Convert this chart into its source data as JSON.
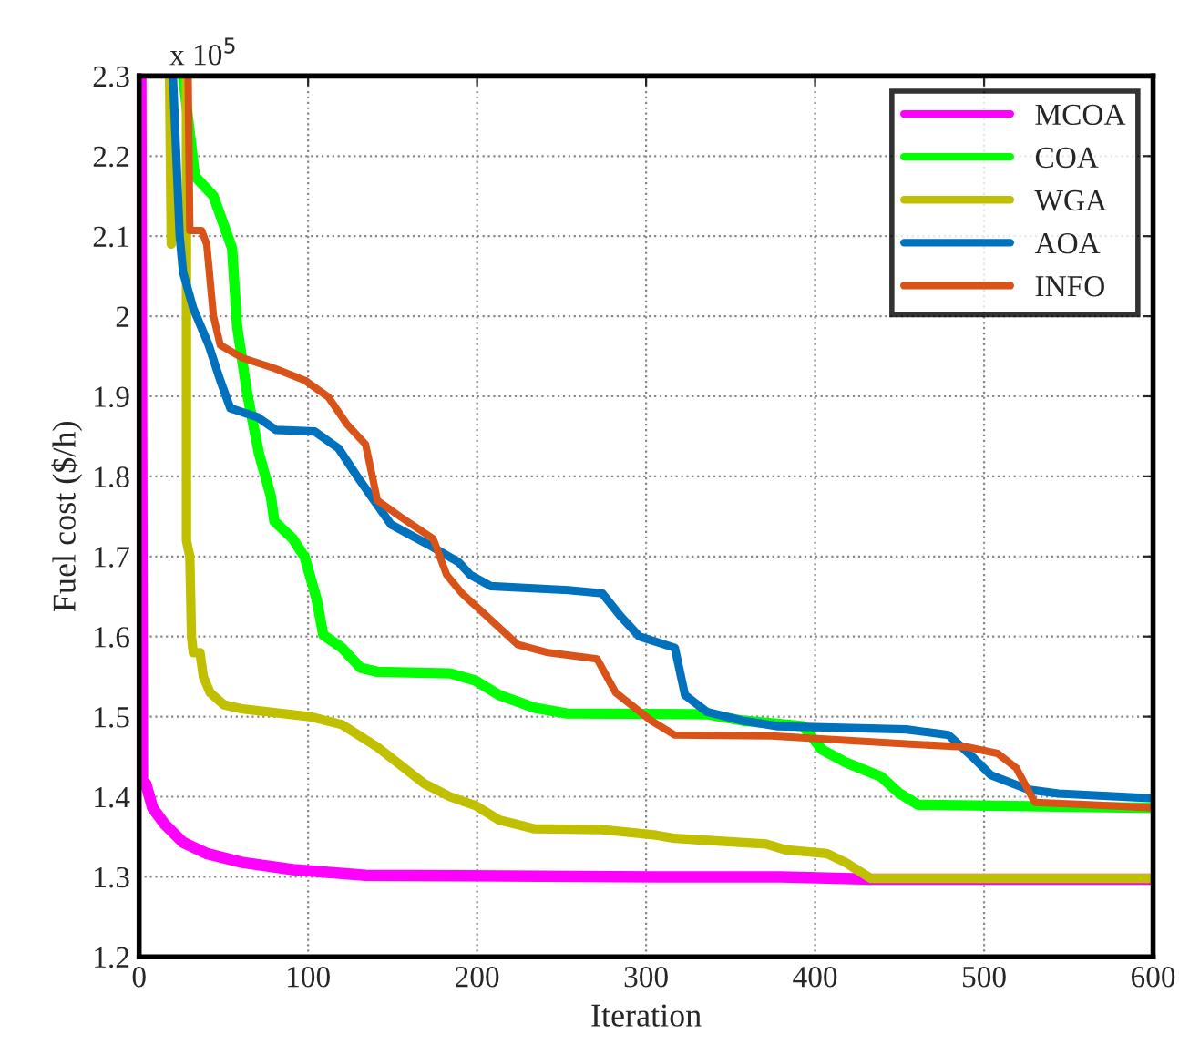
{
  "chart_data": {
    "type": "line",
    "xlabel": "Iteration",
    "ylabel": "Fuel cost ($/h)",
    "annotations": [
      "x 10$^{5}$"
    ],
    "xlim": [
      0,
      600
    ],
    "xticks": [
      0,
      100,
      200,
      300,
      400,
      500,
      600
    ],
    "ylim": [
      1.2,
      2.3
    ],
    "yticks": [
      1.2,
      1.3,
      1.4,
      1.5,
      1.6,
      1.7,
      1.8,
      1.9,
      2,
      2.1,
      2.2,
      2.3
    ],
    "grid": true,
    "legend": "top right",
    "line_style": "solid",
    "marker": "none",
    "series": [
      {
        "name": "MCOA",
        "color": "#ff00ff",
        "x": [
          1,
          2,
          4,
          8,
          15,
          26,
          40,
          61,
          91,
          134,
          306,
          380,
          433,
          600
        ],
        "values": [
          2.3,
          1.42,
          1.416,
          1.386,
          1.366,
          1.343,
          1.329,
          1.318,
          1.309,
          1.302,
          1.3,
          1.3,
          1.297,
          1.297
        ]
      },
      {
        "name": "COA",
        "color": "#00ff00",
        "x": [
          26,
          33,
          44,
          55,
          58,
          64,
          71,
          78,
          80,
          91,
          98,
          105,
          109,
          120,
          131,
          141,
          184,
          199,
          213,
          234,
          253,
          336,
          357,
          393,
          404,
          418,
          439,
          450,
          461,
          600
        ],
        "values": [
          2.3,
          2.175,
          2.15,
          2.085,
          1.987,
          1.903,
          1.828,
          1.775,
          1.744,
          1.722,
          1.699,
          1.647,
          1.602,
          1.586,
          1.561,
          1.556,
          1.554,
          1.545,
          1.527,
          1.511,
          1.504,
          1.503,
          1.495,
          1.488,
          1.459,
          1.443,
          1.425,
          1.404,
          1.39,
          1.386
        ]
      },
      {
        "name": "WGA",
        "color": "#c0c000",
        "x": [
          18,
          19,
          23,
          28,
          28,
          30,
          31,
          32,
          36,
          38,
          42,
          50,
          60,
          101,
          120,
          141,
          169,
          184,
          199,
          213,
          234,
          274,
          306,
          317,
          371,
          382,
          407,
          418,
          433,
          600
        ],
        "values": [
          2.3,
          2.09,
          null,
          2.3,
          1.72,
          1.7,
          1.6,
          1.58,
          1.58,
          1.55,
          1.53,
          1.515,
          1.51,
          1.5,
          1.49,
          1.462,
          1.416,
          1.4,
          1.389,
          1.371,
          1.36,
          1.359,
          1.352,
          1.348,
          1.341,
          1.334,
          1.329,
          1.318,
          1.298,
          1.298
        ]
      },
      {
        "name": "AOA",
        "color": "#0072bd",
        "x": [
          20,
          24,
          26,
          32,
          41,
          48,
          54,
          70,
          81,
          104,
          118,
          129,
          140,
          149,
          171,
          189,
          196,
          208,
          254,
          274,
          285,
          296,
          317,
          323,
          336,
          357,
          378,
          454,
          479,
          493,
          504,
          526,
          544,
          600
        ],
        "values": [
          2.3,
          2.1,
          2.055,
          2.01,
          1.965,
          1.92,
          1.885,
          1.874,
          1.858,
          1.856,
          1.835,
          1.8,
          1.767,
          1.74,
          1.715,
          1.693,
          1.677,
          1.663,
          1.658,
          1.654,
          1.625,
          1.6,
          1.586,
          1.527,
          1.506,
          1.495,
          1.488,
          1.484,
          1.477,
          1.45,
          1.427,
          1.409,
          1.404,
          1.398
        ]
      },
      {
        "name": "INFO",
        "color": "#d95319",
        "x": [
          29,
          30,
          37,
          40,
          44,
          48,
          61,
          80,
          98,
          112,
          123,
          134,
          141,
          155,
          174,
          182,
          191,
          206,
          224,
          242,
          271,
          282,
          303,
          317,
          374,
          454,
          490,
          508,
          519,
          530,
          562,
          600
        ],
        "values": [
          2.3,
          2.107,
          2.107,
          2.09,
          2.0,
          1.964,
          1.948,
          1.935,
          1.92,
          1.899,
          1.865,
          1.84,
          1.77,
          1.749,
          1.722,
          1.677,
          1.654,
          1.625,
          1.59,
          1.58,
          1.572,
          1.53,
          1.495,
          1.477,
          1.476,
          1.466,
          1.462,
          1.454,
          1.436,
          1.393,
          1.39,
          1.386
        ]
      }
    ]
  }
}
